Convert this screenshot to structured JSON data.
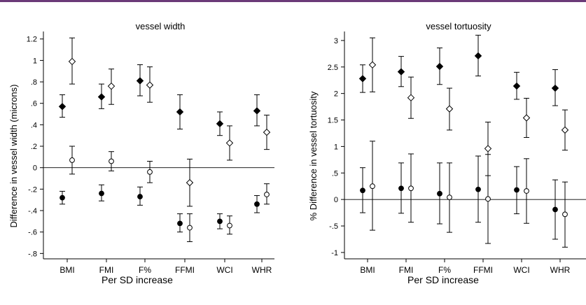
{
  "chart_data": [
    {
      "type": "scatter",
      "title": "vessel width",
      "xlabel": "Per SD increase",
      "ylabel": "Difference in vessel width (microns)",
      "categories": [
        "BMI",
        "FMI",
        "F%",
        "FFMI",
        "WCI",
        "WHR"
      ],
      "ylim": [
        -0.85,
        1.27
      ],
      "yticks": [
        1.2,
        1,
        0.8,
        0.6,
        0.4,
        0.2,
        0,
        -0.2,
        -0.4,
        -0.6,
        -0.8
      ],
      "ytick_labels": [
        "1.2",
        "1",
        ".8",
        ".6",
        ".4",
        ".2",
        "0",
        "-.2",
        "-.4",
        "-.6",
        "-.8"
      ],
      "reference_line": 0,
      "series": [
        {
          "marker": "filled-diamond",
          "values": [
            0.57,
            0.66,
            0.81,
            0.52,
            0.41,
            0.53
          ],
          "lower": [
            0.47,
            0.55,
            0.67,
            0.36,
            0.3,
            0.39
          ],
          "upper": [
            0.68,
            0.78,
            0.96,
            0.68,
            0.52,
            0.68
          ]
        },
        {
          "marker": "open-diamond",
          "values": [
            0.99,
            0.76,
            0.77,
            -0.14,
            0.23,
            0.33
          ],
          "lower": [
            0.78,
            0.59,
            0.61,
            -0.36,
            0.07,
            0.17
          ],
          "upper": [
            1.21,
            0.92,
            0.94,
            0.08,
            0.39,
            0.49
          ]
        },
        {
          "marker": "open-circle",
          "values": [
            0.07,
            0.06,
            -0.04,
            -0.56,
            -0.54,
            -0.25
          ],
          "lower": [
            -0.06,
            -0.03,
            -0.14,
            -0.69,
            -0.62,
            -0.34
          ],
          "upper": [
            0.2,
            0.15,
            0.06,
            -0.43,
            -0.45,
            -0.15
          ]
        },
        {
          "marker": "filled-circle",
          "values": [
            -0.28,
            -0.24,
            -0.27,
            -0.52,
            -0.5,
            -0.34
          ],
          "lower": [
            -0.34,
            -0.31,
            -0.35,
            -0.6,
            -0.57,
            -0.42
          ],
          "upper": [
            -0.22,
            -0.16,
            -0.18,
            -0.43,
            -0.43,
            -0.26
          ]
        }
      ]
    },
    {
      "type": "scatter",
      "title": "vessel tortuosity",
      "xlabel": "Per SD increase",
      "ylabel": "% Difference in vessel tortuosity",
      "categories": [
        "BMI",
        "FMI",
        "F%",
        "FFMI",
        "WCI",
        "WHR"
      ],
      "ylim": [
        -1.12,
        3.17
      ],
      "yticks": [
        3,
        2.5,
        2,
        1.5,
        1,
        0.5,
        0,
        -0.5,
        -1
      ],
      "ytick_labels": [
        "3",
        "2.5",
        "2",
        "1.5",
        "1",
        ".5",
        "0",
        "-.5",
        "-1"
      ],
      "reference_line": 0,
      "series": [
        {
          "marker": "filled-diamond",
          "values": [
            2.28,
            2.41,
            2.51,
            2.71,
            2.14,
            2.1
          ],
          "lower": [
            2.02,
            2.13,
            2.17,
            2.33,
            1.89,
            1.77
          ],
          "upper": [
            2.54,
            2.7,
            2.86,
            3.1,
            2.4,
            2.45
          ]
        },
        {
          "marker": "open-diamond",
          "values": [
            2.54,
            1.92,
            1.71,
            0.96,
            1.54,
            1.31
          ],
          "lower": [
            2.03,
            1.53,
            1.31,
            0.45,
            1.17,
            0.93
          ],
          "upper": [
            3.05,
            2.31,
            2.1,
            1.46,
            1.91,
            1.69
          ]
        },
        {
          "marker": "filled-circle",
          "values": [
            0.17,
            0.21,
            0.11,
            0.19,
            0.18,
            -0.19
          ],
          "lower": [
            -0.25,
            -0.26,
            -0.46,
            -0.43,
            -0.27,
            -0.75
          ],
          "upper": [
            0.6,
            0.69,
            0.69,
            0.82,
            0.62,
            0.37
          ]
        },
        {
          "marker": "open-circle",
          "values": [
            0.25,
            0.21,
            0.04,
            0.01,
            0.16,
            -0.28
          ],
          "lower": [
            -0.58,
            -0.43,
            -0.62,
            -0.83,
            -0.45,
            -0.9
          ],
          "upper": [
            1.1,
            0.86,
            0.69,
            0.85,
            0.77,
            0.33
          ]
        }
      ]
    }
  ]
}
